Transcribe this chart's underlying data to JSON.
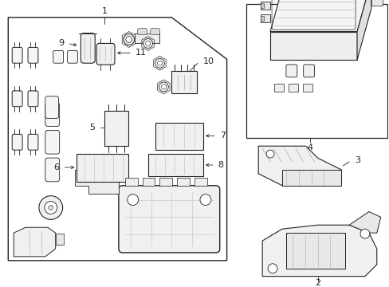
{
  "bg_color": "#ffffff",
  "lc": "#222222",
  "fc_white": "#ffffff",
  "fc_light": "#f8f8f8",
  "fc_gray": "#e8e8e8",
  "fig_width": 4.89,
  "fig_height": 3.6,
  "dpi": 100
}
